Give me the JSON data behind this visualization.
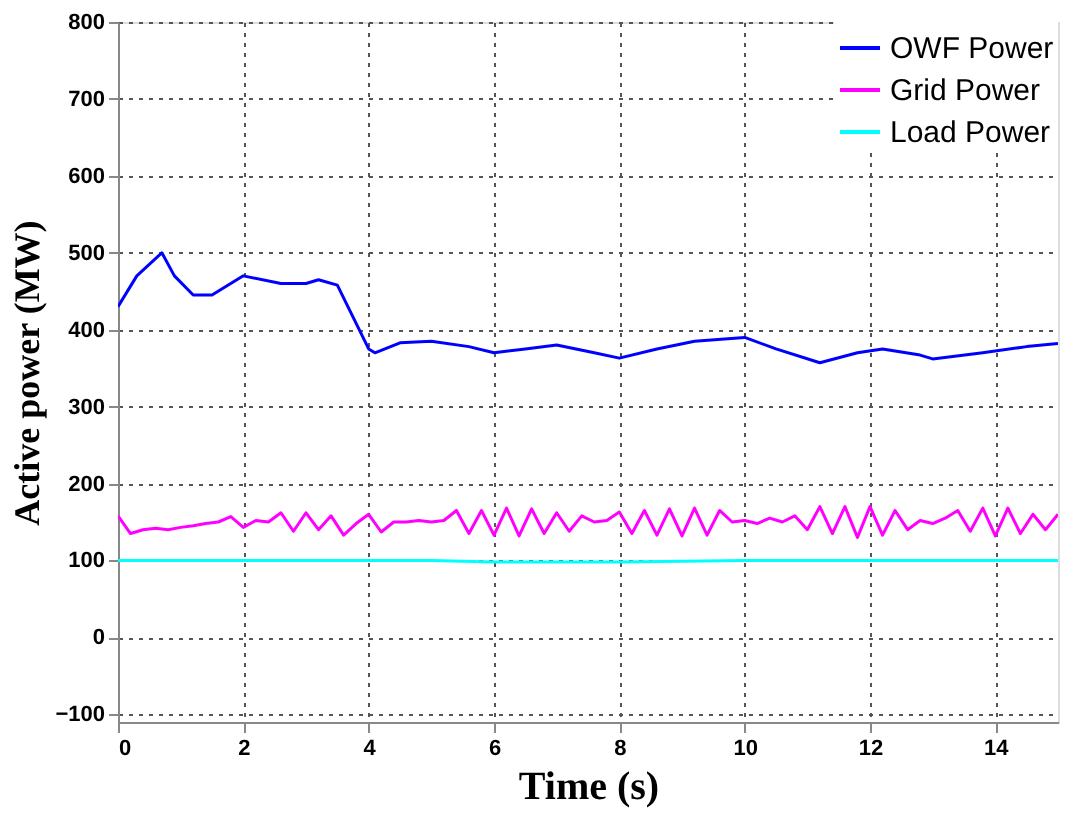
{
  "chart_data": {
    "type": "line",
    "xlabel": "Time (s)",
    "ylabel": "Active power (MW)",
    "xlim": [
      0,
      15
    ],
    "xticks": [
      0,
      2,
      4,
      6,
      8,
      10,
      12,
      14
    ],
    "ylim": [
      -110,
      800
    ],
    "yticks": [
      -100,
      0,
      100,
      200,
      300,
      400,
      500,
      600,
      700,
      800
    ],
    "grid": true,
    "legend": "top right",
    "line_style": "solid",
    "marker": "none",
    "series": [
      {
        "name": "OWF Power",
        "color": "#0000ff",
        "x": [
          0,
          0.3,
          0.7,
          0.9,
          1.2,
          1.5,
          2.0,
          2.6,
          3.0,
          3.2,
          3.5,
          4.0,
          4.1,
          4.5,
          5.0,
          5.6,
          6.0,
          6.5,
          7.0,
          7.6,
          8.0,
          8.6,
          9.2,
          10.0,
          10.5,
          11.2,
          11.8,
          12.2,
          12.8,
          13.0,
          13.8,
          14.5,
          15.0
        ],
        "values": [
          430,
          470,
          500,
          470,
          445,
          445,
          470,
          460,
          460,
          465,
          458,
          375,
          370,
          383,
          385,
          378,
          370,
          375,
          380,
          370,
          363,
          375,
          385,
          390,
          375,
          357,
          370,
          375,
          367,
          362,
          370,
          378,
          382
        ]
      },
      {
        "name": "Grid Power",
        "color": "#ff00ff",
        "x": [
          0,
          0.2,
          0.4,
          0.6,
          0.8,
          1.0,
          1.2,
          1.4,
          1.6,
          1.8,
          2.0,
          2.2,
          2.4,
          2.6,
          2.8,
          3.0,
          3.2,
          3.4,
          3.6,
          3.8,
          4.0,
          4.2,
          4.4,
          4.6,
          4.8,
          5.0,
          5.2,
          5.4,
          5.6,
          5.8,
          6.0,
          6.2,
          6.4,
          6.6,
          6.8,
          7.0,
          7.2,
          7.4,
          7.6,
          7.8,
          8.0,
          8.2,
          8.4,
          8.6,
          8.8,
          9.0,
          9.2,
          9.4,
          9.6,
          9.8,
          10.0,
          10.2,
          10.4,
          10.6,
          10.8,
          11.0,
          11.2,
          11.4,
          11.6,
          11.8,
          12.0,
          12.2,
          12.4,
          12.6,
          12.8,
          13.0,
          13.2,
          13.4,
          13.6,
          13.8,
          14.0,
          14.2,
          14.4,
          14.6,
          14.8,
          15.0
        ],
        "values": [
          158,
          135,
          140,
          142,
          140,
          143,
          145,
          148,
          150,
          157,
          143,
          152,
          150,
          162,
          138,
          162,
          140,
          158,
          133,
          148,
          160,
          137,
          150,
          150,
          152,
          150,
          152,
          165,
          135,
          165,
          133,
          168,
          132,
          167,
          135,
          162,
          138,
          158,
          150,
          152,
          163,
          135,
          165,
          133,
          167,
          132,
          168,
          133,
          165,
          150,
          152,
          148,
          155,
          150,
          158,
          140,
          170,
          135,
          170,
          130,
          170,
          133,
          165,
          140,
          152,
          148,
          155,
          165,
          138,
          168,
          132,
          168,
          135,
          160,
          140,
          160
        ]
      },
      {
        "name": "Load Power",
        "color": "#00ffff",
        "x": [
          0,
          5,
          6,
          8,
          10,
          15
        ],
        "values": [
          100,
          100,
          98,
          98,
          100,
          100
        ]
      }
    ]
  }
}
